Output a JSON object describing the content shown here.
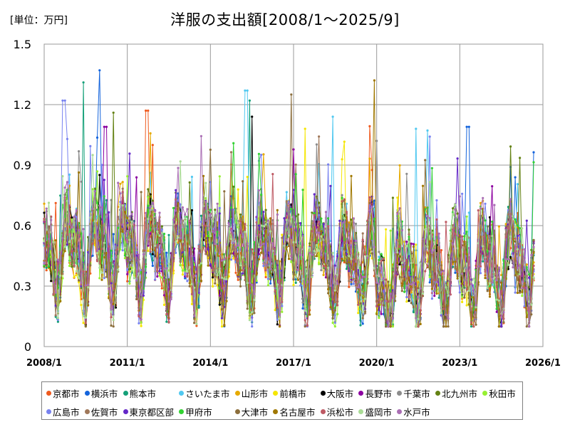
{
  "header": {
    "unit_label": "[単位：万円]",
    "title": "洋服の支出額[2008/1～2025/9]"
  },
  "chart_data": {
    "type": "line",
    "title": "洋服の支出額[2008/1～2025/9]",
    "ylabel": "万円",
    "xlabel": "",
    "ylim": [
      0,
      1.5
    ],
    "y_ticks": [
      "0",
      "0.3",
      "0.6",
      "0.9",
      "1.2",
      "1.5"
    ],
    "x_ticks": [
      "2008/1",
      "2011/1",
      "2014/1",
      "2017/1",
      "2020/1",
      "2023/1",
      "2026/1"
    ],
    "grid": true,
    "legend_position": "bottom",
    "approx_range_note": "monthly series, values mostly between 0.2 and 0.9",
    "series": [
      {
        "name": "京都市",
        "color": "#ef5a1e",
        "peaks": [
          [
            2011.7,
            1.17
          ]
        ]
      },
      {
        "name": "横浜市",
        "color": "#1464dc",
        "peaks": [
          [
            2010.0,
            1.37
          ],
          [
            2023.3,
            1.09
          ]
        ]
      },
      {
        "name": "熊本市",
        "color": "#14a078",
        "peaks": [
          [
            2009.4,
            1.31
          ],
          [
            2015.4,
            1.22
          ]
        ]
      },
      {
        "name": "さいたま市",
        "color": "#50c8f0",
        "peaks": [
          [
            2015.3,
            1.27
          ],
          [
            2018.4,
            1.14
          ],
          [
            2021.4,
            1.08
          ]
        ]
      },
      {
        "name": "山形市",
        "color": "#e6aa00",
        "peaks": []
      },
      {
        "name": "前橋市",
        "color": "#f5e600",
        "peaks": [
          [
            2017.4,
            1.08
          ]
        ]
      },
      {
        "name": "大阪市",
        "color": "#000000",
        "peaks": [
          [
            2015.5,
            1.14
          ]
        ]
      },
      {
        "name": "長野市",
        "color": "#8c00a0",
        "peaks": [
          [
            2010.2,
            1.09
          ]
        ]
      },
      {
        "name": "千葉市",
        "color": "#8c8c8c",
        "peaks": [
          [
            2020.0,
            1.02
          ]
        ]
      },
      {
        "name": "北九州市",
        "color": "#648214",
        "peaks": [
          [
            2010.5,
            1.16
          ]
        ]
      },
      {
        "name": "秋田市",
        "color": "#96f032",
        "peaks": []
      },
      {
        "name": "広島市",
        "color": "#7882f0",
        "peaks": [
          [
            2008.7,
            1.22
          ]
        ]
      },
      {
        "name": "佐賀市",
        "color": "#a0785a",
        "peaks": []
      },
      {
        "name": "東京都区部",
        "color": "#6428c8",
        "peaks": []
      },
      {
        "name": "甲府市",
        "color": "#32d232",
        "peaks": []
      },
      {
        "name": "大津市",
        "color": "#8c6e3c",
        "peaks": [
          [
            2016.9,
            1.25
          ]
        ]
      },
      {
        "name": "名古屋市",
        "color": "#a07800",
        "peaks": [
          [
            2019.9,
            1.32
          ]
        ]
      },
      {
        "name": "浜松市",
        "color": "#be5a64",
        "peaks": []
      },
      {
        "name": "盛岡市",
        "color": "#aadc96",
        "peaks": []
      },
      {
        "name": "水戸市",
        "color": "#aa6eb4",
        "peaks": []
      }
    ]
  }
}
